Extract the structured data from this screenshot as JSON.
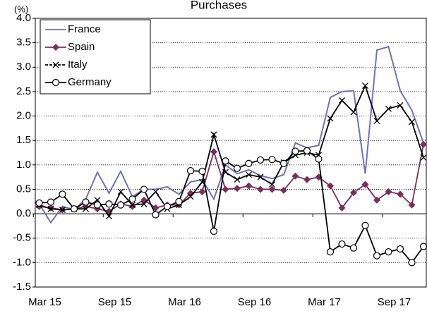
{
  "chart_data": {
    "type": "line",
    "title": "Purchases",
    "y_label": "(%)",
    "categories": [
      "Mar 15",
      null,
      null,
      null,
      null,
      null,
      "Sep 15",
      null,
      null,
      null,
      null,
      null,
      "Mar 16",
      null,
      null,
      null,
      null,
      null,
      "Sep 16",
      null,
      null,
      null,
      null,
      null,
      "Mar 17",
      null,
      null,
      null,
      null,
      null,
      "Sep 17",
      null,
      null,
      null
    ],
    "series": [
      {
        "name": "France",
        "color": "#6f73b8",
        "marker": "none",
        "values": [
          0.2,
          -0.18,
          0.15,
          0.08,
          0.3,
          0.85,
          0.42,
          0.87,
          0.35,
          0.5,
          0.5,
          0.55,
          0.4,
          0.65,
          0.7,
          0.3,
          1.0,
          0.82,
          0.9,
          0.78,
          0.72,
          0.8,
          1.45,
          1.35,
          1.4,
          2.38,
          2.5,
          2.52,
          0.82,
          3.35,
          3.42,
          2.52,
          2.12,
          1.45
        ]
      },
      {
        "name": "Spain",
        "color": "#7b2d5c",
        "marker": "diamond",
        "values": [
          0.15,
          0.12,
          0.08,
          0.1,
          0.15,
          0.1,
          0.05,
          0.2,
          0.15,
          0.28,
          0.12,
          0.18,
          0.18,
          0.42,
          0.45,
          1.27,
          0.5,
          0.52,
          0.57,
          0.5,
          0.5,
          0.48,
          0.77,
          0.7,
          0.75,
          0.57,
          0.12,
          0.43,
          0.6,
          0.28,
          0.45,
          0.4,
          0.18,
          1.42
        ]
      },
      {
        "name": "Italy",
        "color": "#000000",
        "marker": "x",
        "dash": true,
        "values": [
          0.18,
          0.1,
          0.08,
          0.1,
          0.1,
          0.28,
          -0.05,
          0.45,
          0.18,
          0.2,
          0.45,
          0.1,
          0.18,
          0.35,
          0.65,
          1.62,
          0.85,
          0.7,
          0.8,
          0.75,
          0.6,
          1.05,
          1.2,
          1.25,
          1.2,
          1.95,
          2.32,
          2.08,
          2.62,
          1.9,
          2.15,
          2.22,
          1.88,
          1.15
        ]
      },
      {
        "name": "Germany",
        "color": "#000000",
        "marker": "circle",
        "values": [
          0.22,
          0.24,
          0.4,
          0.1,
          0.24,
          0.18,
          0.2,
          0.18,
          0.3,
          0.5,
          -0.02,
          0.15,
          0.25,
          0.88,
          0.87,
          -0.36,
          1.08,
          0.93,
          1.03,
          1.1,
          1.11,
          1.03,
          1.28,
          1.29,
          1.12,
          -0.78,
          -0.62,
          -0.7,
          -0.24,
          -0.86,
          -0.78,
          -0.72,
          -1.0,
          -0.67
        ]
      }
    ],
    "ylim": [
      -1.5,
      4.0
    ],
    "yticks": [
      {
        "value": -1.5,
        "label": "-1.5"
      },
      {
        "value": -1.0,
        "label": "-1.0"
      },
      {
        "value": -0.5,
        "label": "-0.5"
      },
      {
        "value": 0,
        "label": "0.0"
      },
      {
        "value": 0.5,
        "label": "0.5"
      },
      {
        "value": 1.0,
        "label": "1.0"
      },
      {
        "value": 1.5,
        "label": "1.5"
      },
      {
        "value": 2.0,
        "label": "2.0"
      },
      {
        "value": 2.5,
        "label": "2.5"
      },
      {
        "value": 3.0,
        "label": "3.0"
      },
      {
        "value": 3.5,
        "label": "3.5"
      },
      {
        "value": 4.0,
        "label": "4.0"
      }
    ],
    "grid": true,
    "legend": "top-left"
  }
}
